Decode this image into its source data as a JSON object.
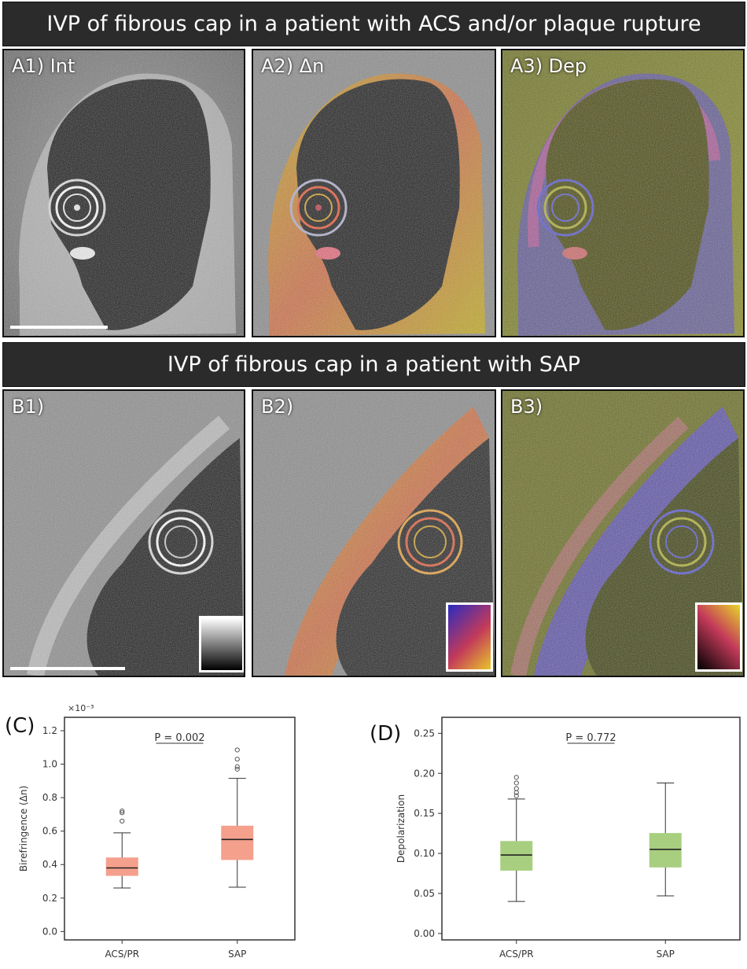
{
  "banners": {
    "top": "IVP of fibrous cap in a patient with ACS and/or plaque rupture",
    "bottom": "IVP of fibrous cap in a patient with SAP"
  },
  "panels": {
    "a1": "A1) Int",
    "a2": "A2) Δn",
    "a3": "A3) Dep",
    "b1": "B1)",
    "b2": "B2)",
    "b3": "B3)"
  },
  "chart_data": [
    {
      "type": "box",
      "letter": "(C)",
      "ylabel": "Birefringence (Δn)",
      "multiplier": "×10⁻³",
      "categories": [
        "ACS/PR",
        "SAP"
      ],
      "yticks": [
        "0.0",
        "0.2",
        "0.4",
        "0.6",
        "0.8",
        "1.0",
        "1.2"
      ],
      "ylim": [
        -0.05,
        1.28
      ],
      "annotation": "P = 0.002",
      "color": "#f4a08c",
      "series": [
        {
          "category": "ACS/PR",
          "min": 0.26,
          "q1": 0.335,
          "median": 0.38,
          "q3": 0.44,
          "max": 0.59,
          "outliers": [
            0.66,
            0.71,
            0.72
          ]
        },
        {
          "category": "SAP",
          "min": 0.265,
          "q1": 0.43,
          "median": 0.55,
          "q3": 0.63,
          "max": 0.915,
          "outliers": [
            0.97,
            0.985,
            1.03,
            1.085
          ]
        }
      ]
    },
    {
      "type": "box",
      "letter": "(D)",
      "ylabel": "Depolarization",
      "categories": [
        "ACS/PR",
        "SAP"
      ],
      "yticks": [
        "0.00",
        "0.05",
        "0.10",
        "0.15",
        "0.20",
        "0.25"
      ],
      "ylim": [
        -0.008,
        0.27
      ],
      "annotation": "P = 0.772",
      "color": "#a8cf80",
      "series": [
        {
          "category": "ACS/PR",
          "min": 0.04,
          "q1": 0.079,
          "median": 0.098,
          "q3": 0.115,
          "max": 0.168,
          "outliers": [
            0.172,
            0.176,
            0.181,
            0.188,
            0.195
          ]
        },
        {
          "category": "SAP",
          "min": 0.047,
          "q1": 0.083,
          "median": 0.105,
          "q3": 0.125,
          "max": 0.188,
          "outliers": []
        }
      ]
    }
  ]
}
